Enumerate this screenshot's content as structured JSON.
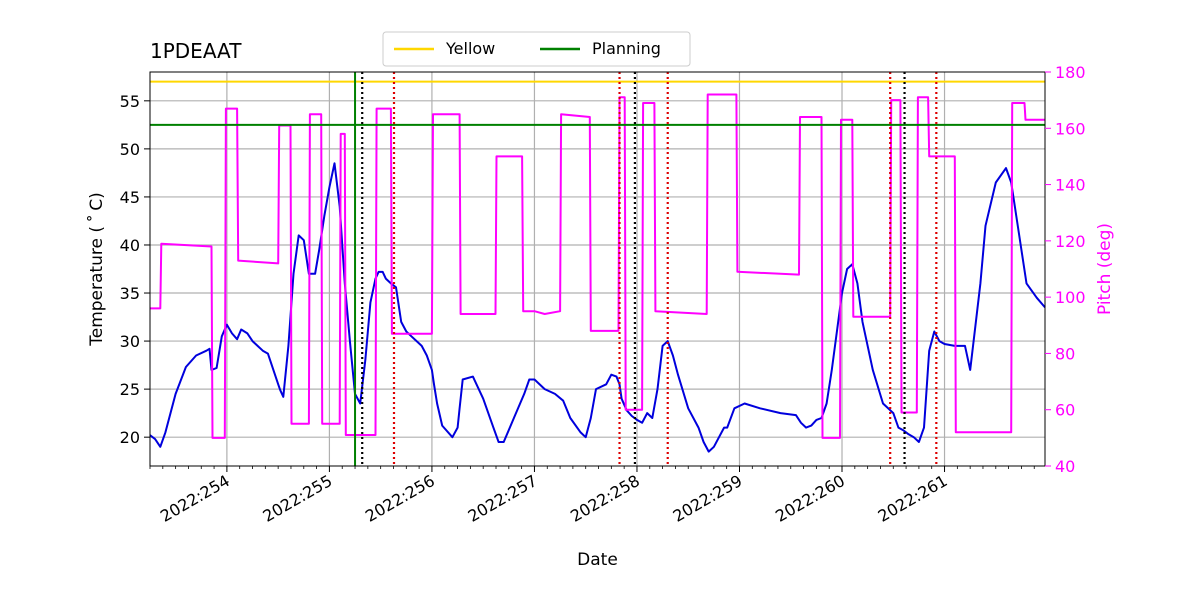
{
  "chart_data": {
    "type": "line",
    "title": "1PDEAAT",
    "xlabel": "Date",
    "ylabel": "Temperature ($^\\circ$C)",
    "ylabel_display": "Temperature ( ˚ C)",
    "y2label": "Pitch (deg)",
    "xlim": [
      253.25,
      261.98
    ],
    "ylim": [
      17,
      58
    ],
    "y2lim": [
      40,
      180
    ],
    "x_ticks": [
      254,
      255,
      256,
      257,
      258,
      259,
      260,
      261
    ],
    "x_tick_labels": [
      "2022:254",
      "2022:255",
      "2022:256",
      "2022:257",
      "2022:258",
      "2022:259",
      "2022:260",
      "2022:261"
    ],
    "y_ticks": [
      20,
      25,
      30,
      35,
      40,
      45,
      50,
      55
    ],
    "y2_ticks": [
      40,
      60,
      80,
      100,
      120,
      140,
      160,
      180
    ],
    "grid": true,
    "legend": {
      "placement": "top-center",
      "entries": [
        {
          "name": "Yellow",
          "color": "#ffd700"
        },
        {
          "name": "Planning",
          "color": "#008000"
        }
      ]
    },
    "colors": {
      "temperature": "#0000dd",
      "pitch": "#ff00ff",
      "yellow": "#ffd700",
      "planning": "#008000",
      "red_marker": "#dd0000",
      "black_marker": "#000000",
      "grid": "#b0b0b0"
    },
    "limits": {
      "yellow": 57,
      "planning": 52.5
    },
    "vertical_lines": {
      "green": [
        255.25
      ],
      "black_dotted": [
        255.32,
        257.98,
        260.61
      ],
      "red_dotted": [
        255.63,
        257.83,
        258.3,
        260.47,
        260.92
      ]
    },
    "series": [
      {
        "name": "Temperature",
        "axis": "left",
        "x": [
          253.25,
          253.3,
          253.35,
          253.4,
          253.5,
          253.6,
          253.7,
          253.8,
          253.83,
          253.85,
          253.9,
          253.95,
          254.0,
          254.05,
          254.1,
          254.14,
          254.2,
          254.25,
          254.3,
          254.35,
          254.4,
          254.5,
          254.52,
          254.55,
          254.6,
          254.65,
          254.7,
          254.75,
          254.8,
          254.86,
          254.9,
          254.95,
          255.0,
          255.05,
          255.1,
          255.15,
          255.2,
          255.25,
          255.3,
          255.35,
          255.4,
          255.45,
          255.48,
          255.52,
          255.55,
          255.6,
          255.65,
          255.7,
          255.75,
          255.8,
          255.85,
          255.9,
          255.95,
          256.0,
          256.02,
          256.05,
          256.1,
          256.2,
          256.25,
          256.27,
          256.3,
          256.4,
          256.5,
          256.6,
          256.65,
          256.7,
          256.8,
          256.9,
          256.95,
          257.0,
          257.1,
          257.2,
          257.28,
          257.35,
          257.45,
          257.5,
          257.55,
          257.6,
          257.7,
          257.75,
          257.8,
          257.83,
          257.85,
          257.9,
          257.95,
          258.0,
          258.05,
          258.1,
          258.15,
          258.2,
          258.25,
          258.3,
          258.35,
          258.4,
          258.5,
          258.6,
          258.65,
          258.7,
          258.75,
          258.8,
          258.85,
          258.88,
          258.95,
          259.05,
          259.2,
          259.4,
          259.55,
          259.6,
          259.65,
          259.7,
          259.75,
          259.8,
          259.85,
          259.9,
          259.95,
          260.0,
          260.05,
          260.1,
          260.15,
          260.2,
          260.3,
          260.4,
          260.5,
          260.55,
          260.6,
          260.65,
          260.7,
          260.75,
          260.8,
          260.85,
          260.9,
          260.95,
          261.0,
          261.1,
          261.2,
          261.25,
          261.3,
          261.35,
          261.4,
          261.5,
          261.6,
          261.65,
          261.7,
          261.8,
          261.9,
          261.98
        ],
        "y": [
          20.2,
          19.8,
          19.0,
          20.5,
          24.5,
          27.3,
          28.5,
          29.0,
          29.2,
          27.0,
          27.2,
          30.5,
          31.7,
          30.8,
          30.2,
          31.2,
          30.8,
          30.0,
          29.5,
          29.0,
          28.7,
          25.5,
          24.9,
          24.2,
          29.5,
          37.0,
          41.0,
          40.5,
          37.0,
          37.0,
          39.5,
          43.0,
          46.0,
          48.5,
          44.0,
          36.0,
          30.0,
          24.5,
          23.5,
          28.0,
          34.0,
          36.5,
          37.2,
          37.2,
          36.5,
          36.0,
          35.6,
          32.0,
          31.0,
          30.5,
          30.0,
          29.5,
          28.5,
          27.0,
          25.5,
          23.5,
          21.2,
          20.0,
          21.0,
          23.0,
          26.0,
          26.3,
          24.0,
          21.0,
          19.5,
          19.5,
          22.0,
          24.5,
          26.0,
          26.0,
          25.0,
          24.5,
          23.8,
          22.0,
          20.5,
          20.0,
          22.0,
          25.0,
          25.5,
          26.5,
          26.3,
          25.5,
          24.0,
          22.8,
          22.2,
          21.8,
          21.5,
          22.5,
          22.0,
          25.0,
          29.5,
          30.0,
          28.5,
          26.5,
          23.0,
          21.0,
          19.5,
          18.5,
          19.0,
          20.0,
          21.0,
          21.0,
          23.0,
          23.5,
          23.0,
          22.5,
          22.3,
          21.5,
          21.0,
          21.2,
          21.8,
          22.0,
          23.5,
          27.0,
          31.0,
          35.0,
          37.5,
          38.0,
          36.0,
          32.0,
          27.0,
          23.5,
          22.5,
          21.0,
          20.7,
          20.3,
          20.0,
          19.5,
          21.0,
          29.0,
          31.0,
          30.0,
          29.7,
          29.5,
          29.5,
          27.0,
          31.5,
          36.0,
          42.0,
          46.5,
          48.0,
          46.5,
          43.0,
          36.0,
          34.5,
          33.5
        ],
        "color": "#0000dd"
      },
      {
        "name": "Pitch",
        "axis": "right",
        "x": [
          253.25,
          253.35,
          253.36,
          253.85,
          253.86,
          253.98,
          253.99,
          254.1,
          254.11,
          254.5,
          254.51,
          254.62,
          254.63,
          254.8,
          254.81,
          254.92,
          254.93,
          255.1,
          255.11,
          255.15,
          255.16,
          255.45,
          255.46,
          255.6,
          255.61,
          256.0,
          256.01,
          256.27,
          256.28,
          256.62,
          256.63,
          256.88,
          256.89,
          257.0,
          257.1,
          257.25,
          257.26,
          257.54,
          257.55,
          257.82,
          257.83,
          257.88,
          257.89,
          258.05,
          258.06,
          258.17,
          258.18,
          258.68,
          258.69,
          258.97,
          258.98,
          259.58,
          259.59,
          259.8,
          259.81,
          259.98,
          259.99,
          260.1,
          260.11,
          260.47,
          260.48,
          260.57,
          260.58,
          260.73,
          260.74,
          260.84,
          260.85,
          261.1,
          261.11,
          261.65,
          261.66,
          261.78,
          261.79,
          261.98
        ],
        "y": [
          96,
          96,
          119,
          118,
          50,
          50,
          167,
          167,
          113,
          112,
          161,
          161,
          55,
          55,
          165,
          165,
          55,
          55,
          158,
          158,
          51,
          51,
          167,
          167,
          87,
          87,
          165,
          165,
          94,
          94,
          150,
          150,
          95,
          95,
          94,
          95,
          165,
          164,
          88,
          88,
          171,
          171,
          60,
          60,
          169,
          169,
          95,
          94,
          172,
          172,
          109,
          108,
          164,
          164,
          50,
          50,
          163,
          163,
          93,
          93,
          170,
          170,
          59,
          59,
          171,
          171,
          150,
          150,
          52,
          52,
          169,
          169,
          163,
          163
        ],
        "color": "#ff00ff"
      }
    ]
  }
}
